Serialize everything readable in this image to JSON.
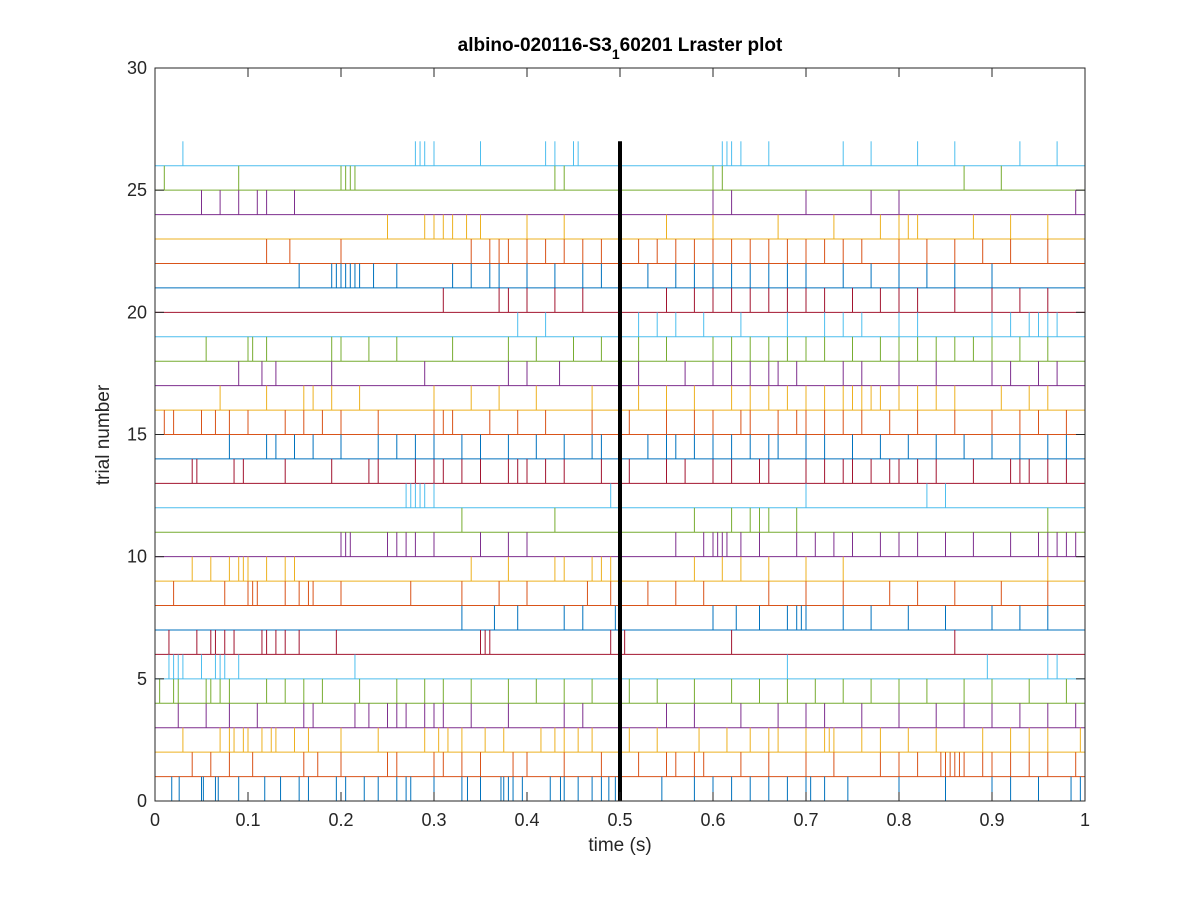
{
  "chart_data": {
    "type": "raster",
    "title": "albino-020116-S3",
    "title_subscript": "1",
    "title_suffix": "60201 Lraster plot",
    "xlabel": "time (s)",
    "ylabel": "trial number",
    "xlim": [
      0,
      1
    ],
    "ylim": [
      0,
      30
    ],
    "x_ticks": [
      0,
      0.1,
      0.2,
      0.3,
      0.4,
      0.5,
      0.6,
      0.7,
      0.8,
      0.9,
      1
    ],
    "x_tick_labels": [
      "0",
      "0.1",
      "0.2",
      "0.3",
      "0.4",
      "0.5",
      "0.6",
      "0.7",
      "0.8",
      "0.9",
      "1"
    ],
    "y_ticks": [
      0,
      5,
      10,
      15,
      20,
      25,
      30
    ],
    "y_tick_labels": [
      "0",
      "5",
      "10",
      "15",
      "20",
      "25",
      "30"
    ],
    "grid": false,
    "stimulus_marker": {
      "x": 0.5,
      "y_range": [
        0,
        27
      ],
      "color": "#000000"
    },
    "series_colors": [
      "#0072BD",
      "#D95319",
      "#EDB120",
      "#7E2F8E",
      "#77AC30",
      "#4DBEEE",
      "#A2142F"
    ],
    "trials": [
      {
        "trial": 1,
        "spikes": [
          0.018,
          0.026,
          0.05,
          0.052,
          0.065,
          0.068,
          0.09,
          0.118,
          0.135,
          0.155,
          0.165,
          0.195,
          0.205,
          0.225,
          0.24,
          0.26,
          0.27,
          0.275,
          0.3,
          0.33,
          0.336,
          0.35,
          0.372,
          0.375,
          0.38,
          0.385,
          0.395,
          0.425,
          0.436,
          0.44,
          0.455,
          0.47,
          0.48,
          0.488,
          0.495,
          0.5,
          0.545,
          0.58,
          0.6,
          0.62,
          0.64,
          0.66,
          0.68,
          0.7,
          0.705,
          0.72,
          0.745,
          0.8,
          0.85,
          0.9,
          0.92,
          0.95,
          0.985,
          0.995
        ]
      },
      {
        "trial": 2,
        "spikes": [
          0.04,
          0.06,
          0.08,
          0.105,
          0.16,
          0.175,
          0.2,
          0.25,
          0.26,
          0.3,
          0.31,
          0.33,
          0.35,
          0.385,
          0.4,
          0.44,
          0.48,
          0.52,
          0.55,
          0.56,
          0.58,
          0.59,
          0.63,
          0.66,
          0.7,
          0.73,
          0.78,
          0.8,
          0.82,
          0.845,
          0.85,
          0.855,
          0.86,
          0.865,
          0.87,
          0.89,
          0.9,
          0.92,
          0.94,
          0.96,
          0.99
        ]
      },
      {
        "trial": 3,
        "spikes": [
          0.03,
          0.07,
          0.08,
          0.085,
          0.095,
          0.1,
          0.115,
          0.125,
          0.13,
          0.15,
          0.165,
          0.2,
          0.24,
          0.29,
          0.305,
          0.315,
          0.33,
          0.355,
          0.375,
          0.415,
          0.43,
          0.44,
          0.455,
          0.47,
          0.51,
          0.54,
          0.585,
          0.615,
          0.64,
          0.66,
          0.67,
          0.7,
          0.72,
          0.725,
          0.73,
          0.76,
          0.78,
          0.81,
          0.84,
          0.89,
          0.92,
          0.94,
          0.96,
          0.995
        ]
      },
      {
        "trial": 4,
        "spikes": [
          0.025,
          0.055,
          0.08,
          0.11,
          0.16,
          0.17,
          0.215,
          0.23,
          0.25,
          0.26,
          0.27,
          0.29,
          0.3,
          0.31,
          0.34,
          0.38,
          0.44,
          0.46,
          0.5,
          0.55,
          0.58,
          0.63,
          0.67,
          0.7,
          0.72,
          0.76,
          0.8,
          0.84,
          0.87,
          0.9,
          0.93,
          0.96,
          0.99
        ]
      },
      {
        "trial": 5,
        "spikes": [
          0.005,
          0.02,
          0.025,
          0.055,
          0.06,
          0.07,
          0.08,
          0.12,
          0.14,
          0.16,
          0.18,
          0.22,
          0.26,
          0.29,
          0.31,
          0.34,
          0.38,
          0.41,
          0.44,
          0.47,
          0.51,
          0.54,
          0.58,
          0.62,
          0.65,
          0.68,
          0.71,
          0.74,
          0.77,
          0.8,
          0.83,
          0.87,
          0.9,
          0.94,
          0.98
        ]
      },
      {
        "trial": 6,
        "spikes": [
          0.015,
          0.02,
          0.025,
          0.03,
          0.05,
          0.065,
          0.07,
          0.075,
          0.09,
          0.215,
          0.68,
          0.895,
          0.96,
          0.97
        ]
      },
      {
        "trial": 7,
        "spikes": [
          0.015,
          0.045,
          0.06,
          0.065,
          0.075,
          0.085,
          0.115,
          0.12,
          0.13,
          0.14,
          0.155,
          0.195,
          0.35,
          0.355,
          0.36,
          0.49,
          0.505,
          0.62,
          0.86
        ]
      },
      {
        "trial": 8,
        "spikes": [
          0.33,
          0.365,
          0.39,
          0.44,
          0.46,
          0.495,
          0.6,
          0.625,
          0.65,
          0.68,
          0.69,
          0.695,
          0.7,
          0.74,
          0.77,
          0.81,
          0.85,
          0.9,
          0.93,
          0.96,
          1.0
        ]
      },
      {
        "trial": 9,
        "spikes": [
          0.02,
          0.075,
          0.1,
          0.105,
          0.11,
          0.14,
          0.155,
          0.165,
          0.17,
          0.2,
          0.275,
          0.33,
          0.37,
          0.4,
          0.465,
          0.49,
          0.53,
          0.56,
          0.59,
          0.66,
          0.7,
          0.74,
          0.79,
          0.82,
          0.86,
          0.91,
          0.96
        ]
      },
      {
        "trial": 10,
        "spikes": [
          0.04,
          0.06,
          0.08,
          0.09,
          0.095,
          0.1,
          0.12,
          0.14,
          0.15,
          0.34,
          0.38,
          0.43,
          0.44,
          0.47,
          0.48,
          0.49,
          0.5,
          0.58,
          0.61,
          0.63,
          0.66,
          0.7,
          0.74,
          0.96
        ]
      },
      {
        "trial": 11,
        "spikes": [
          0.2,
          0.205,
          0.21,
          0.25,
          0.26,
          0.27,
          0.28,
          0.3,
          0.35,
          0.38,
          0.4,
          0.56,
          0.59,
          0.6,
          0.605,
          0.61,
          0.615,
          0.63,
          0.65,
          0.69,
          0.71,
          0.73,
          0.75,
          0.78,
          0.8,
          0.82,
          0.85,
          0.88,
          0.92,
          0.95,
          0.96,
          0.97,
          0.98,
          0.99
        ]
      },
      {
        "trial": 12,
        "spikes": [
          0.33,
          0.43,
          0.58,
          0.62,
          0.64,
          0.65,
          0.66,
          0.69,
          0.96
        ]
      },
      {
        "trial": 13,
        "spikes": [
          0.27,
          0.275,
          0.28,
          0.285,
          0.29,
          0.3,
          0.49,
          0.7,
          0.83,
          0.85
        ]
      },
      {
        "trial": 14,
        "spikes": [
          0.04,
          0.045,
          0.085,
          0.095,
          0.14,
          0.19,
          0.23,
          0.24,
          0.28,
          0.3,
          0.31,
          0.33,
          0.35,
          0.38,
          0.39,
          0.4,
          0.42,
          0.44,
          0.48,
          0.51,
          0.55,
          0.57,
          0.6,
          0.62,
          0.65,
          0.66,
          0.7,
          0.72,
          0.74,
          0.75,
          0.77,
          0.79,
          0.8,
          0.82,
          0.84,
          0.88,
          0.92,
          0.93,
          0.94,
          0.96,
          0.98
        ]
      },
      {
        "trial": 15,
        "spikes": [
          0.08,
          0.12,
          0.13,
          0.15,
          0.17,
          0.2,
          0.24,
          0.26,
          0.28,
          0.3,
          0.33,
          0.35,
          0.38,
          0.41,
          0.44,
          0.47,
          0.48,
          0.5,
          0.53,
          0.55,
          0.56,
          0.58,
          0.6,
          0.62,
          0.64,
          0.66,
          0.67,
          0.7,
          0.72,
          0.75,
          0.78,
          0.81,
          0.84,
          0.87,
          0.9,
          0.93,
          0.96,
          0.98
        ]
      },
      {
        "trial": 16,
        "spikes": [
          0.01,
          0.02,
          0.05,
          0.065,
          0.08,
          0.1,
          0.14,
          0.16,
          0.18,
          0.2,
          0.24,
          0.3,
          0.31,
          0.32,
          0.36,
          0.39,
          0.42,
          0.47,
          0.51,
          0.55,
          0.58,
          0.6,
          0.63,
          0.64,
          0.67,
          0.69,
          0.7,
          0.72,
          0.74,
          0.76,
          0.79,
          0.82,
          0.86,
          0.9,
          0.93,
          0.95,
          0.98
        ]
      },
      {
        "trial": 17,
        "spikes": [
          0.07,
          0.12,
          0.16,
          0.17,
          0.19,
          0.22,
          0.3,
          0.34,
          0.37,
          0.41,
          0.47,
          0.5,
          0.52,
          0.55,
          0.58,
          0.62,
          0.64,
          0.66,
          0.68,
          0.7,
          0.72,
          0.74,
          0.75,
          0.76,
          0.77,
          0.78,
          0.8,
          0.82,
          0.84,
          0.86,
          0.91,
          0.94,
          0.96
        ]
      },
      {
        "trial": 18,
        "spikes": [
          0.09,
          0.115,
          0.13,
          0.19,
          0.29,
          0.38,
          0.4,
          0.435,
          0.52,
          0.57,
          0.6,
          0.62,
          0.64,
          0.66,
          0.67,
          0.69,
          0.74,
          0.76,
          0.8,
          0.84,
          0.9,
          0.92,
          0.95,
          0.97
        ]
      },
      {
        "trial": 19,
        "spikes": [
          0.055,
          0.1,
          0.105,
          0.12,
          0.19,
          0.2,
          0.23,
          0.26,
          0.32,
          0.38,
          0.41,
          0.45,
          0.48,
          0.52,
          0.55,
          0.6,
          0.62,
          0.64,
          0.66,
          0.68,
          0.7,
          0.72,
          0.75,
          0.78,
          0.8,
          0.82,
          0.84,
          0.86,
          0.88,
          0.9,
          0.93,
          0.96
        ]
      },
      {
        "trial": 20,
        "spikes": [
          0.39,
          0.42,
          0.5,
          0.52,
          0.54,
          0.56,
          0.59,
          0.63,
          0.68,
          0.72,
          0.74,
          0.76,
          0.8,
          0.82,
          0.9,
          0.92,
          0.94,
          0.95,
          0.96,
          0.97
        ]
      },
      {
        "trial": 21,
        "spikes": [
          0.31,
          0.37,
          0.38,
          0.4,
          0.43,
          0.46,
          0.5,
          0.55,
          0.58,
          0.6,
          0.62,
          0.64,
          0.66,
          0.68,
          0.7,
          0.72,
          0.75,
          0.78,
          0.8,
          0.82,
          0.86,
          0.9,
          0.93,
          0.96
        ]
      },
      {
        "trial": 22,
        "spikes": [
          0.155,
          0.19,
          0.195,
          0.2,
          0.205,
          0.21,
          0.215,
          0.22,
          0.235,
          0.26,
          0.32,
          0.34,
          0.36,
          0.37,
          0.4,
          0.43,
          0.46,
          0.48,
          0.5,
          0.53,
          0.56,
          0.58,
          0.6,
          0.62,
          0.64,
          0.66,
          0.68,
          0.7,
          0.74,
          0.77,
          0.8,
          0.83,
          0.86,
          0.9
        ]
      },
      {
        "trial": 23,
        "spikes": [
          0.12,
          0.145,
          0.2,
          0.34,
          0.36,
          0.37,
          0.38,
          0.4,
          0.42,
          0.44,
          0.46,
          0.48,
          0.5,
          0.52,
          0.54,
          0.56,
          0.58,
          0.6,
          0.62,
          0.64,
          0.66,
          0.68,
          0.7,
          0.72,
          0.74,
          0.76,
          0.8,
          0.83,
          0.86,
          0.89,
          0.92,
          0.96
        ]
      },
      {
        "trial": 24,
        "spikes": [
          0.25,
          0.29,
          0.3,
          0.31,
          0.32,
          0.335,
          0.35,
          0.4,
          0.44,
          0.5,
          0.55,
          0.6,
          0.67,
          0.73,
          0.78,
          0.8,
          0.81,
          0.82,
          0.88,
          0.92,
          0.96
        ]
      },
      {
        "trial": 25,
        "spikes": [
          0.05,
          0.07,
          0.09,
          0.11,
          0.12,
          0.15,
          0.6,
          0.62,
          0.7,
          0.77,
          0.8,
          0.99
        ]
      },
      {
        "trial": 26,
        "spikes": [
          0.01,
          0.09,
          0.2,
          0.205,
          0.21,
          0.215,
          0.43,
          0.44,
          0.6,
          0.61,
          0.87,
          0.91
        ]
      },
      {
        "trial": 27,
        "spikes": [
          0.03,
          0.28,
          0.285,
          0.29,
          0.3,
          0.35,
          0.42,
          0.43,
          0.45,
          0.455,
          0.61,
          0.615,
          0.62,
          0.63,
          0.66,
          0.74,
          0.77,
          0.82,
          0.86,
          0.93,
          0.97
        ]
      }
    ]
  }
}
